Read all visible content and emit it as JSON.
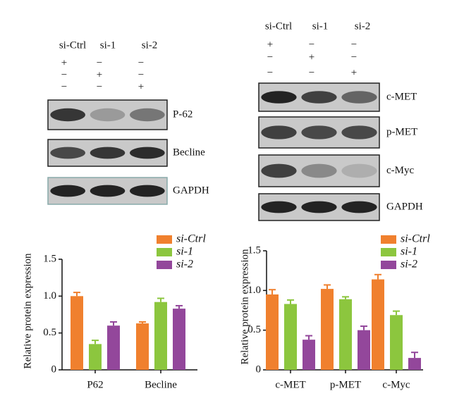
{
  "blots": [
    {
      "columns": [
        "si-Ctrl",
        "si-1",
        "si-2"
      ],
      "treatments": [
        [
          "+",
          "−",
          "−"
        ],
        [
          "−",
          "+",
          "−"
        ],
        [
          "−",
          "−",
          "+"
        ]
      ],
      "bands": [
        "P-62",
        "Becline",
        "GAPDH"
      ]
    },
    {
      "columns": [
        "si-Ctrl",
        "si-1",
        "si-2"
      ],
      "treatments": [
        [
          "+",
          "−",
          "−"
        ],
        [
          "−",
          "+",
          "−"
        ],
        [
          "−",
          "−",
          "+"
        ]
      ],
      "bands": [
        "c-MET",
        "p-MET",
        "c-Myc",
        "GAPDH"
      ]
    }
  ],
  "chart_data": [
    {
      "type": "bar",
      "y_label": "Relative protein expression",
      "categories": [
        "P62",
        "Becline"
      ],
      "series": [
        {
          "name": "si-Ctrl",
          "color": "#f0802e",
          "values": [
            1.0,
            0.63
          ],
          "errors": [
            0.05,
            0.02
          ]
        },
        {
          "name": "si-1",
          "color": "#8cc63e",
          "values": [
            0.35,
            0.92
          ],
          "errors": [
            0.05,
            0.05
          ]
        },
        {
          "name": "si-2",
          "color": "#93479b",
          "values": [
            0.6,
            0.83
          ],
          "errors": [
            0.05,
            0.04
          ]
        }
      ],
      "ylim": [
        0,
        1.5
      ],
      "yticks": [
        0,
        0.5,
        {
          "value": 1,
          "label": "1.0"
        },
        1.5
      ]
    },
    {
      "type": "bar",
      "y_label": "Relative protein expression",
      "categories": [
        "c-MET",
        "p-MET",
        "c-Myc"
      ],
      "series": [
        {
          "name": "si-Ctrl",
          "color": "#f0802e",
          "values": [
            0.95,
            1.02,
            1.14
          ],
          "errors": [
            0.06,
            0.05,
            0.06
          ]
        },
        {
          "name": "si-1",
          "color": "#8cc63e",
          "values": [
            0.83,
            0.89,
            0.69
          ],
          "errors": [
            0.05,
            0.03,
            0.05
          ]
        },
        {
          "name": "si-2",
          "color": "#93479b",
          "values": [
            0.38,
            0.5,
            0.15
          ],
          "errors": [
            0.05,
            0.05,
            0.07
          ]
        }
      ],
      "ylim": [
        0,
        1.5
      ],
      "yticks": [
        0,
        0.5,
        {
          "value": 1,
          "label": "1.0"
        },
        1.5
      ]
    }
  ]
}
